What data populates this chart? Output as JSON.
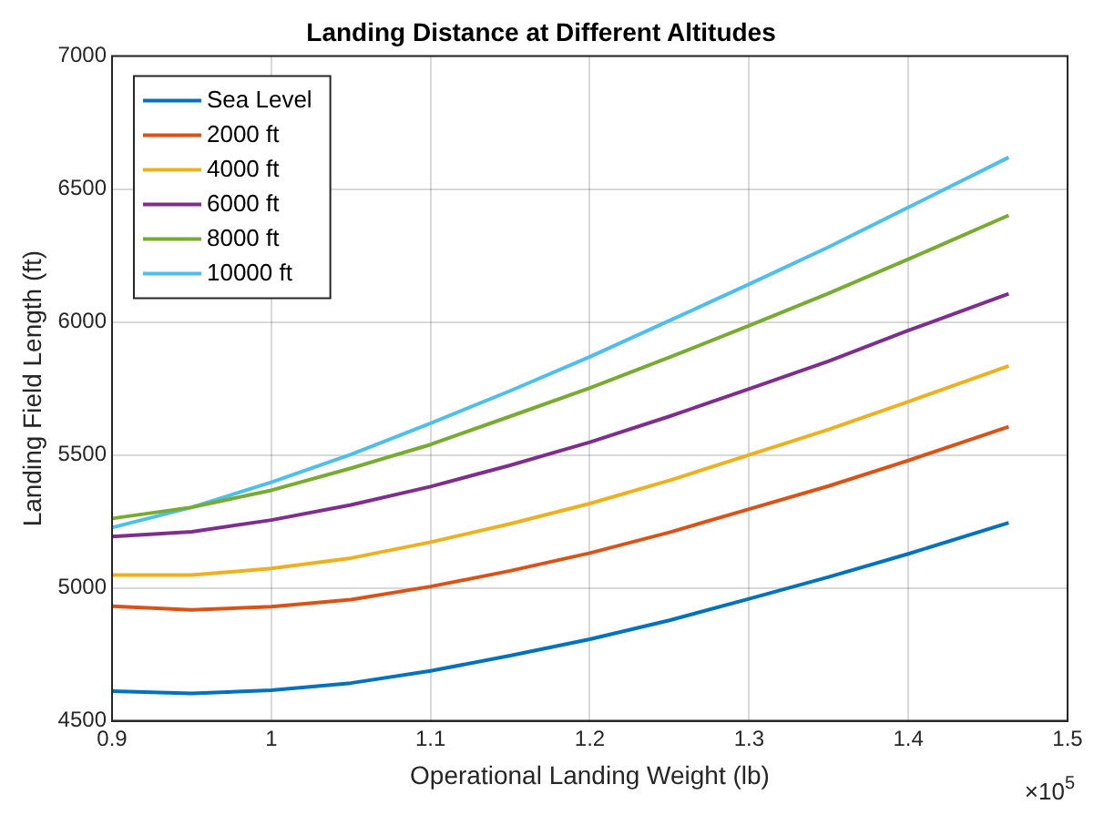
{
  "chart_data": {
    "type": "line",
    "title": "Landing Distance at Different Altitudes",
    "xlabel": "Operational Landing Weight (lb)",
    "ylabel": "Landing Field Length (ft)",
    "annotations": [
      "×10$^{5}$"
    ],
    "x": [
      0.9,
      0.95,
      1,
      1.05,
      1.1,
      1.15,
      1.2,
      1.25,
      1.3,
      1.35,
      1.4,
      1.463
    ],
    "series": [
      {
        "name": "Sea Level",
        "color": "#0072bd",
        "values": [
          4612,
          4603,
          4615,
          4642,
          4688,
          4745,
          4807,
          4878,
          4959,
          5041,
          5128,
          5245
        ]
      },
      {
        "name": "2000 ft",
        "color": "#d95319",
        "values": [
          4931,
          4917,
          4929,
          4956,
          5005,
          5064,
          5131,
          5209,
          5296,
          5383,
          5479,
          5606
        ]
      },
      {
        "name": "4000 ft",
        "color": "#edb120",
        "values": [
          5048,
          5048,
          5073,
          5112,
          5172,
          5241,
          5317,
          5404,
          5500,
          5596,
          5700,
          5835
        ]
      },
      {
        "name": "6000 ft",
        "color": "#7e2f8e",
        "values": [
          5193,
          5211,
          5255,
          5312,
          5381,
          5461,
          5548,
          5645,
          5748,
          5853,
          5968,
          6106
        ]
      },
      {
        "name": "8000 ft",
        "color": "#77ac30",
        "values": [
          5261,
          5303,
          5367,
          5450,
          5539,
          5645,
          5752,
          5867,
          5986,
          6108,
          6236,
          6401
        ]
      },
      {
        "name": "10000 ft",
        "color": "#4dbeee",
        "values": [
          5227,
          5303,
          5397,
          5502,
          5619,
          5741,
          5869,
          6005,
          6142,
          6282,
          6431,
          6619
        ]
      }
    ],
    "xlim": [
      0.9,
      1.5
    ],
    "xticks": [
      0.9,
      1,
      1.1,
      1.2,
      1.3,
      1.4,
      1.5
    ],
    "ylim": [
      4500,
      7000
    ],
    "yticks": [
      4500,
      5000,
      5500,
      6000,
      6500,
      7000
    ],
    "grid": true,
    "legend": "top left",
    "marker": "none",
    "line_style": "solid"
  }
}
